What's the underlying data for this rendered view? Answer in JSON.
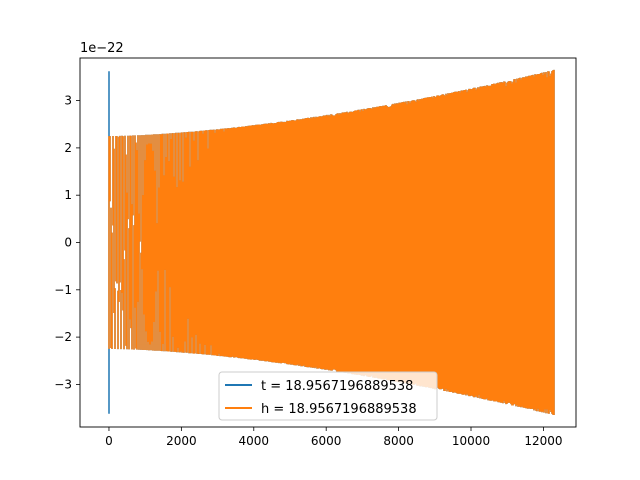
{
  "chart_data": {
    "type": "line",
    "title": "",
    "xlabel": "",
    "ylabel": "",
    "y_scale_label": "1e−22",
    "xlim": [
      -800,
      12900
    ],
    "ylim": [
      -3.9,
      3.9
    ],
    "y_multiplier": 1e-22,
    "x_ticks": [
      0,
      2000,
      4000,
      6000,
      8000,
      10000,
      12000
    ],
    "x_tick_labels": [
      "0",
      "2000",
      "4000",
      "6000",
      "8000",
      "10000",
      "12000"
    ],
    "y_ticks": [
      -3,
      -2,
      -1,
      0,
      1,
      2,
      3
    ],
    "y_tick_labels": [
      "−3",
      "−2",
      "−1",
      "0",
      "1",
      "2",
      "3"
    ],
    "grid": false,
    "legend_position": "lower-center",
    "series": [
      {
        "name": "t = 18.9567196889538",
        "color": "#1f77b4",
        "x_range": [
          0,
          12300
        ],
        "envelope_start": 2.25,
        "envelope_end": 3.65,
        "initial_spike": 3.62,
        "cycles_start": 1,
        "cycles_end": 10,
        "samples": 12301
      },
      {
        "name": "h = 18.9567196889538",
        "color": "#ff7f0e",
        "x_range": [
          0,
          12300
        ],
        "envelope_start": 2.25,
        "envelope_end": 3.65,
        "initial_spike": 2.25,
        "cycles_start": 1,
        "cycles_end": 10,
        "samples": 12301
      }
    ]
  }
}
